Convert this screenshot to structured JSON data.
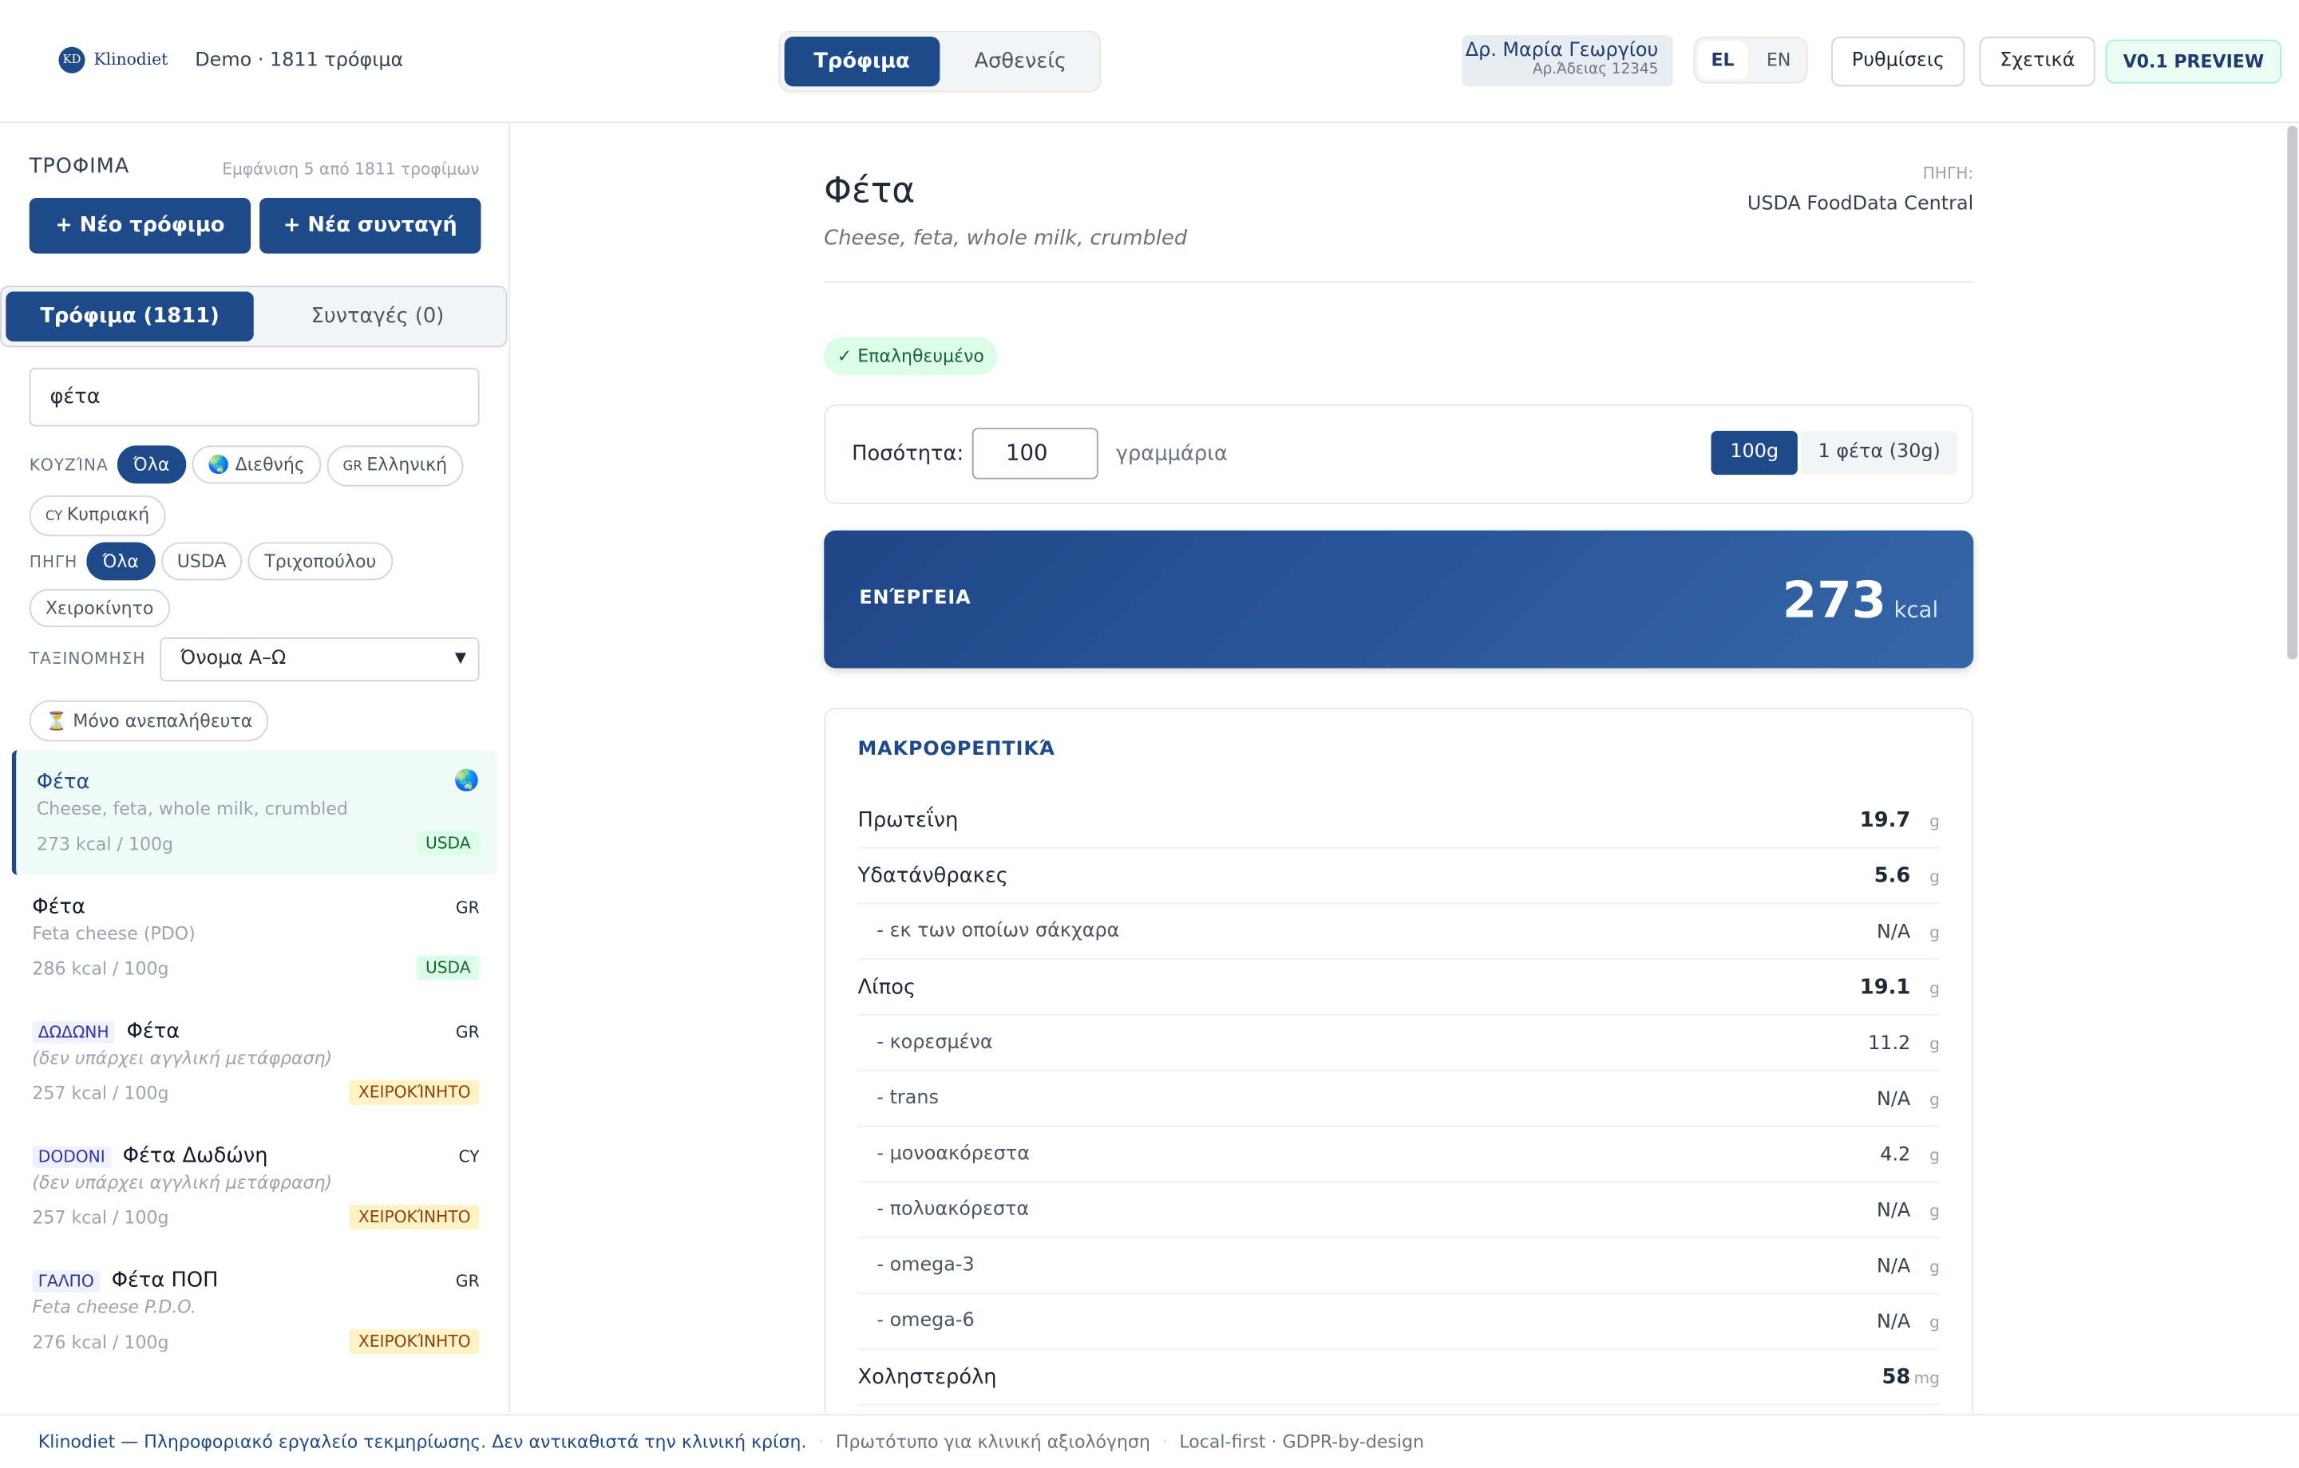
{
  "header": {
    "logo": "KD",
    "brand": "Klinodiet",
    "subtitle": "Demo · 1811 τρόφιμα",
    "tabs": [
      "Τρόφιμα",
      "Ασθενείς"
    ],
    "user_name": "Δρ. Μαρία Γεωργίου",
    "user_license": "Αρ.Άδειας 12345",
    "languages": [
      "EL",
      "EN"
    ],
    "buttons": [
      "Ρυθμίσεις",
      "Σχετικά"
    ],
    "version": "V0.1 PREVIEW"
  },
  "sidebar": {
    "title": "ΤΡΟΦΙΜΑ",
    "count": "Εμφάνιση 5 από 1811 τροφίμων",
    "actions": [
      "+ Νέο τρόφιμο",
      "+ Νέα συνταγή"
    ],
    "tabs": [
      "Τρόφιμα (1811)",
      "Συνταγές (0)"
    ],
    "search": "φέτα",
    "cuisine": {
      "label": "ΚΟΥΖΊΝΑ",
      "options": [
        {
          "code": "",
          "label": "Όλα"
        },
        {
          "code": "",
          "label": "Διεθνής"
        },
        {
          "code": "GR",
          "label": "Ελληνική"
        },
        {
          "code": "CY",
          "label": "Κυπριακή"
        }
      ]
    },
    "source": {
      "label": "ΠΗΓΗ",
      "options": [
        "Όλα",
        "USDA",
        "Τριχοπούλου",
        "Χειροκίνητο"
      ]
    },
    "sort": {
      "label": "ΤΑΞΙΝΟΜΗΣΗ",
      "value": "Όνομα Α–Ω"
    },
    "toggle": "Μόνο ανεπαλήθευτα",
    "items": [
      {
        "brand": "",
        "name": "Φέτα",
        "subtitle": "Cheese, feta, whole milk, crumbled",
        "kcal": "273 kcal / 100g",
        "origin": "",
        "badge": "USDA"
      },
      {
        "brand": "",
        "name": "Φέτα",
        "subtitle": "Feta cheese (PDO)",
        "kcal": "286 kcal / 100g",
        "origin": "GR",
        "badge": "USDA"
      },
      {
        "brand": "ΔΩΔΩΝΗ",
        "name": "Φέτα",
        "subtitle": "(δεν υπάρχει αγγλική μετάφραση)",
        "kcal": "257 kcal / 100g",
        "origin": "GR",
        "badge": "ΧΕΙΡΟΚΊΝΗΤΟ"
      },
      {
        "brand": "DODONI",
        "name": "Φέτα Δωδώνη",
        "subtitle": "(δεν υπάρχει αγγλική μετάφραση)",
        "kcal": "257 kcal / 100g",
        "origin": "CY",
        "badge": "ΧΕΙΡΟΚΊΝΗΤΟ"
      },
      {
        "brand": "ΓΑΛΠΟ",
        "name": "Φέτα ΠΟΠ",
        "subtitle": "Feta cheese P.D.O.",
        "kcal": "276 kcal / 100g",
        "origin": "GR",
        "badge": "ΧΕΙΡΟΚΊΝΗΤΟ"
      }
    ]
  },
  "detail": {
    "title": "Φέτα",
    "subtitle": "Cheese, feta, whole milk, crumbled",
    "source_label": "ΠΗΓΗ:",
    "source": "USDA FoodData Central",
    "verified": "✓ Επαληθευμένο",
    "quantity_label": "Ποσότητα:",
    "quantity": 100,
    "quantity_unit": "γραμμάρια",
    "presets": [
      "100g",
      "1 φέτα (30g)"
    ],
    "energy_label": "ΕΝΈΡΓΕΙΑ",
    "energy": 273,
    "energy_unit": "kcal",
    "macros_title": "ΜΑΚΡΟΘΡΕΠΤΙΚΆ",
    "macros": [
      {
        "name": "Πρωτεΐνη",
        "value": 19.7,
        "unit": "g",
        "sub": false
      },
      {
        "name": "Υδατάνθρακες",
        "value": 5.6,
        "unit": "g",
        "sub": false
      },
      {
        "name": "- εκ των οποίων σάκχαρα",
        "value": "N/A",
        "unit": "g",
        "sub": true
      },
      {
        "name": "Λίπος",
        "value": 19.1,
        "unit": "g",
        "sub": false
      },
      {
        "name": "- κορεσμένα",
        "value": 11.2,
        "unit": "g",
        "sub": true
      },
      {
        "name": "- trans",
        "value": "N/A",
        "unit": "g",
        "sub": true
      },
      {
        "name": "- μονοακόρεστα",
        "value": 4.2,
        "unit": "g",
        "sub": true
      },
      {
        "name": "- πολυακόρεστα",
        "value": "N/A",
        "unit": "g",
        "sub": true
      },
      {
        "name": "- omega-3",
        "value": "N/A",
        "unit": "g",
        "sub": true
      },
      {
        "name": "- omega-6",
        "value": "N/A",
        "unit": "g",
        "sub": true
      },
      {
        "name": "Χοληστερόλη",
        "value": 58,
        "unit": "mg",
        "sub": false
      }
    ]
  },
  "footer": [
    "Klinodiet — Πληροφοριακό εργαλείο τεκμηρίωσης. Δεν αντικαθιστά την κλινική κρίση.",
    "Πρωτότυπο για κλινική αξιολόγηση",
    "Local-first · GDPR-by-design"
  ]
}
